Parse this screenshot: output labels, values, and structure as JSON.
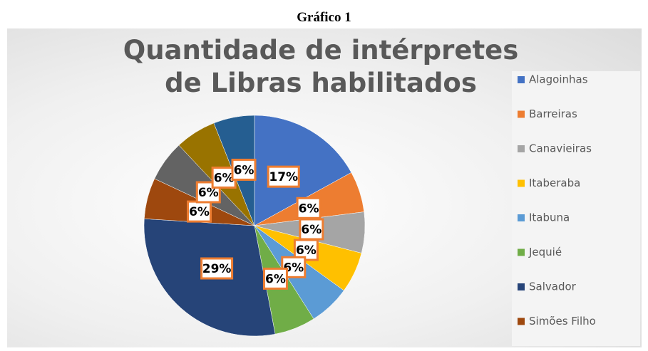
{
  "caption": "Gráfico 1",
  "chart_data": {
    "type": "pie",
    "title": "Quantidade de intérpretes de Libras habilitados",
    "categories": [
      "Alagoinhas",
      "Barreiras",
      "Canavieiras",
      "Itaberaba",
      "Itabuna",
      "Jequié",
      "Salvador",
      "Simões Filho",
      null,
      null,
      null
    ],
    "values": [
      17,
      6,
      6,
      6,
      6,
      6,
      29,
      6,
      6,
      6,
      6
    ],
    "value_labels": [
      "17%",
      "6%",
      "6%",
      "6%",
      "6%",
      "6%",
      "29%",
      "6%",
      "6%",
      "6%",
      "6%"
    ],
    "colors": [
      "#4472c4",
      "#ed7d31",
      "#a5a5a5",
      "#ffc000",
      "#5b9bd5",
      "#70ad47",
      "#264478",
      "#9e480e",
      "#636363",
      "#997300",
      "#255e91"
    ],
    "legend": "right"
  }
}
